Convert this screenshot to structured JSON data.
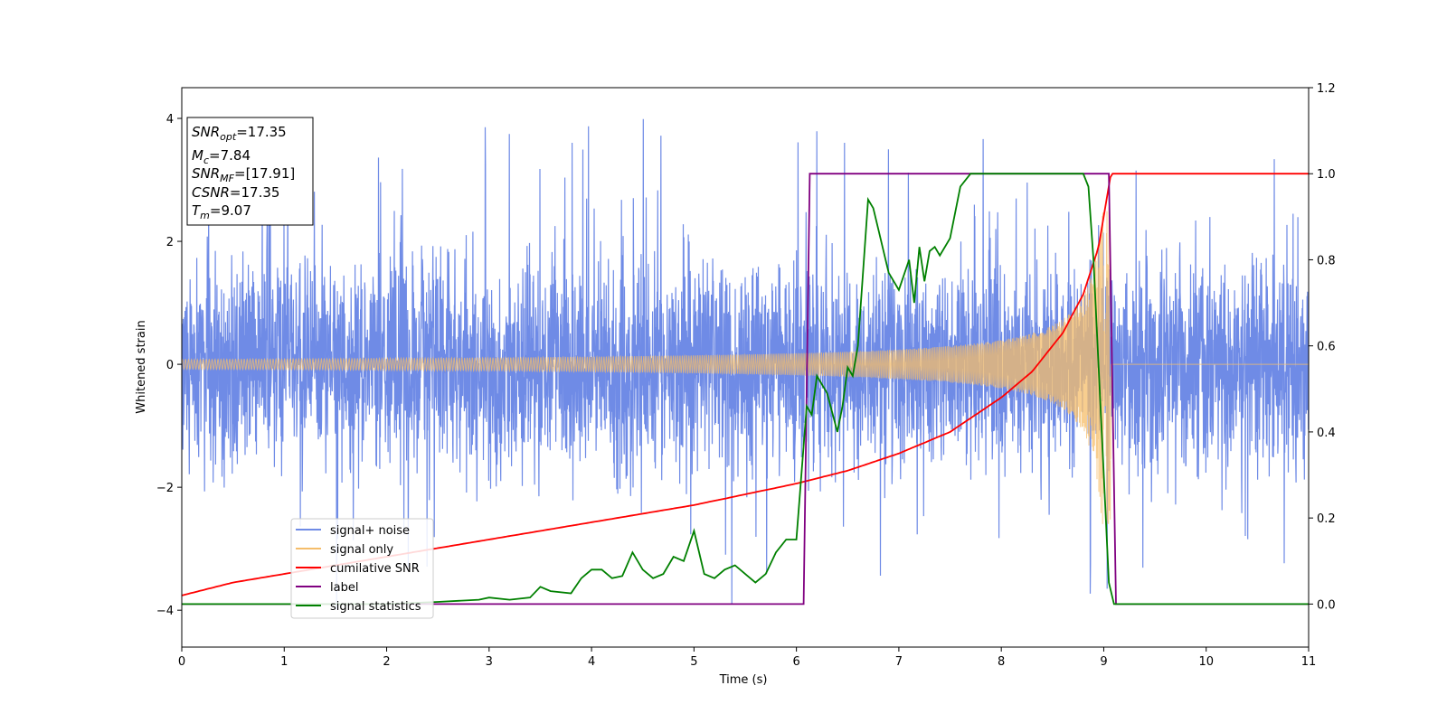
{
  "chart_data": {
    "type": "line",
    "xlabel": "Time (s)",
    "ylabel": "Whitened strain",
    "xlim": [
      0,
      11
    ],
    "ylim_left": [
      -4.6,
      4.5
    ],
    "ylim_right": [
      -0.1,
      1.2
    ],
    "xticks": [
      "0",
      "1",
      "2",
      "3",
      "4",
      "5",
      "6",
      "7",
      "8",
      "9",
      "10",
      "11"
    ],
    "yticks_left": [
      "−4",
      "−2",
      "0",
      "2",
      "4"
    ],
    "yticks_right": [
      "0.0",
      "0.2",
      "0.4",
      "0.6",
      "0.8",
      "1.0",
      "1.2"
    ],
    "grid": false,
    "legend_location": "lower-left",
    "annotation_box": {
      "lines": [
        {
          "sym": "SNR",
          "sub": "opt",
          "val": "=17.35"
        },
        {
          "sym": "M",
          "sub": "c",
          "val": "=7.84"
        },
        {
          "sym": "SNR",
          "sub": "MF",
          "val": "=[17.91]"
        },
        {
          "sym": "CSNR",
          "sub": "",
          "val": "=17.35"
        },
        {
          "sym": "T",
          "sub": "m",
          "val": "=9.07"
        }
      ]
    },
    "series": [
      {
        "name": "signal+ noise",
        "axis": "left",
        "color": "#6f8be6",
        "description_visual": "dense noise band roughly between -2 and 2 with spikes up to about 4",
        "noise_std": 0.85,
        "spike_max": 4.05,
        "spike_min": -4.1
      },
      {
        "name": "signal only",
        "axis": "left",
        "color": "#f5bd6a",
        "chirp": {
          "start": 0,
          "merge": 9.07,
          "amp_start": 0.08,
          "amp_merge": 2.6,
          "end_value": 0
        }
      },
      {
        "name": "cumilative SNR",
        "axis": "right",
        "color": "#ff0000",
        "x": [
          0,
          0.5,
          1,
          2,
          3,
          4,
          5,
          6,
          6.5,
          7,
          7.5,
          8,
          8.3,
          8.6,
          8.8,
          8.95,
          9.07,
          11
        ],
        "y": [
          0.02,
          0.05,
          0.07,
          0.11,
          0.15,
          0.19,
          0.23,
          0.28,
          0.31,
          0.35,
          0.4,
          0.48,
          0.54,
          0.63,
          0.72,
          0.83,
          1.0,
          1.0
        ]
      },
      {
        "name": "label",
        "axis": "right",
        "color": "#800080",
        "x": [
          0,
          6.07,
          6.13,
          9.05,
          9.12,
          11
        ],
        "y": [
          0,
          0,
          1,
          1,
          0,
          0
        ]
      },
      {
        "name": "signal statistics",
        "axis": "right",
        "color": "#008000",
        "x": [
          0,
          1,
          2,
          2.5,
          2.9,
          3.0,
          3.2,
          3.4,
          3.5,
          3.6,
          3.8,
          3.9,
          4.0,
          4.1,
          4.2,
          4.3,
          4.4,
          4.5,
          4.6,
          4.7,
          4.8,
          4.9,
          5.0,
          5.1,
          5.2,
          5.3,
          5.4,
          5.5,
          5.6,
          5.7,
          5.8,
          5.9,
          6.0,
          6.1,
          6.15,
          6.2,
          6.3,
          6.4,
          6.45,
          6.5,
          6.55,
          6.6,
          6.7,
          6.75,
          6.8,
          6.9,
          7.0,
          7.1,
          7.15,
          7.2,
          7.25,
          7.3,
          7.35,
          7.4,
          7.5,
          7.6,
          7.7,
          7.8,
          7.9,
          8.0,
          8.3,
          8.6,
          8.8,
          8.85,
          8.9,
          8.95,
          9.0,
          9.05,
          9.1,
          9.15,
          11
        ],
        "y": [
          0.0,
          0.0,
          0.0,
          0.005,
          0.01,
          0.015,
          0.01,
          0.015,
          0.04,
          0.03,
          0.025,
          0.06,
          0.08,
          0.08,
          0.06,
          0.065,
          0.12,
          0.08,
          0.06,
          0.07,
          0.11,
          0.1,
          0.17,
          0.07,
          0.06,
          0.08,
          0.09,
          0.07,
          0.05,
          0.07,
          0.12,
          0.15,
          0.15,
          0.46,
          0.44,
          0.53,
          0.49,
          0.4,
          0.46,
          0.55,
          0.53,
          0.6,
          0.94,
          0.92,
          0.87,
          0.77,
          0.73,
          0.8,
          0.7,
          0.83,
          0.75,
          0.82,
          0.83,
          0.81,
          0.85,
          0.97,
          1.0,
          1.0,
          1.0,
          1.0,
          1.0,
          1.0,
          1.0,
          0.97,
          0.8,
          0.55,
          0.3,
          0.05,
          0.0,
          0.0,
          0.0
        ]
      }
    ]
  }
}
